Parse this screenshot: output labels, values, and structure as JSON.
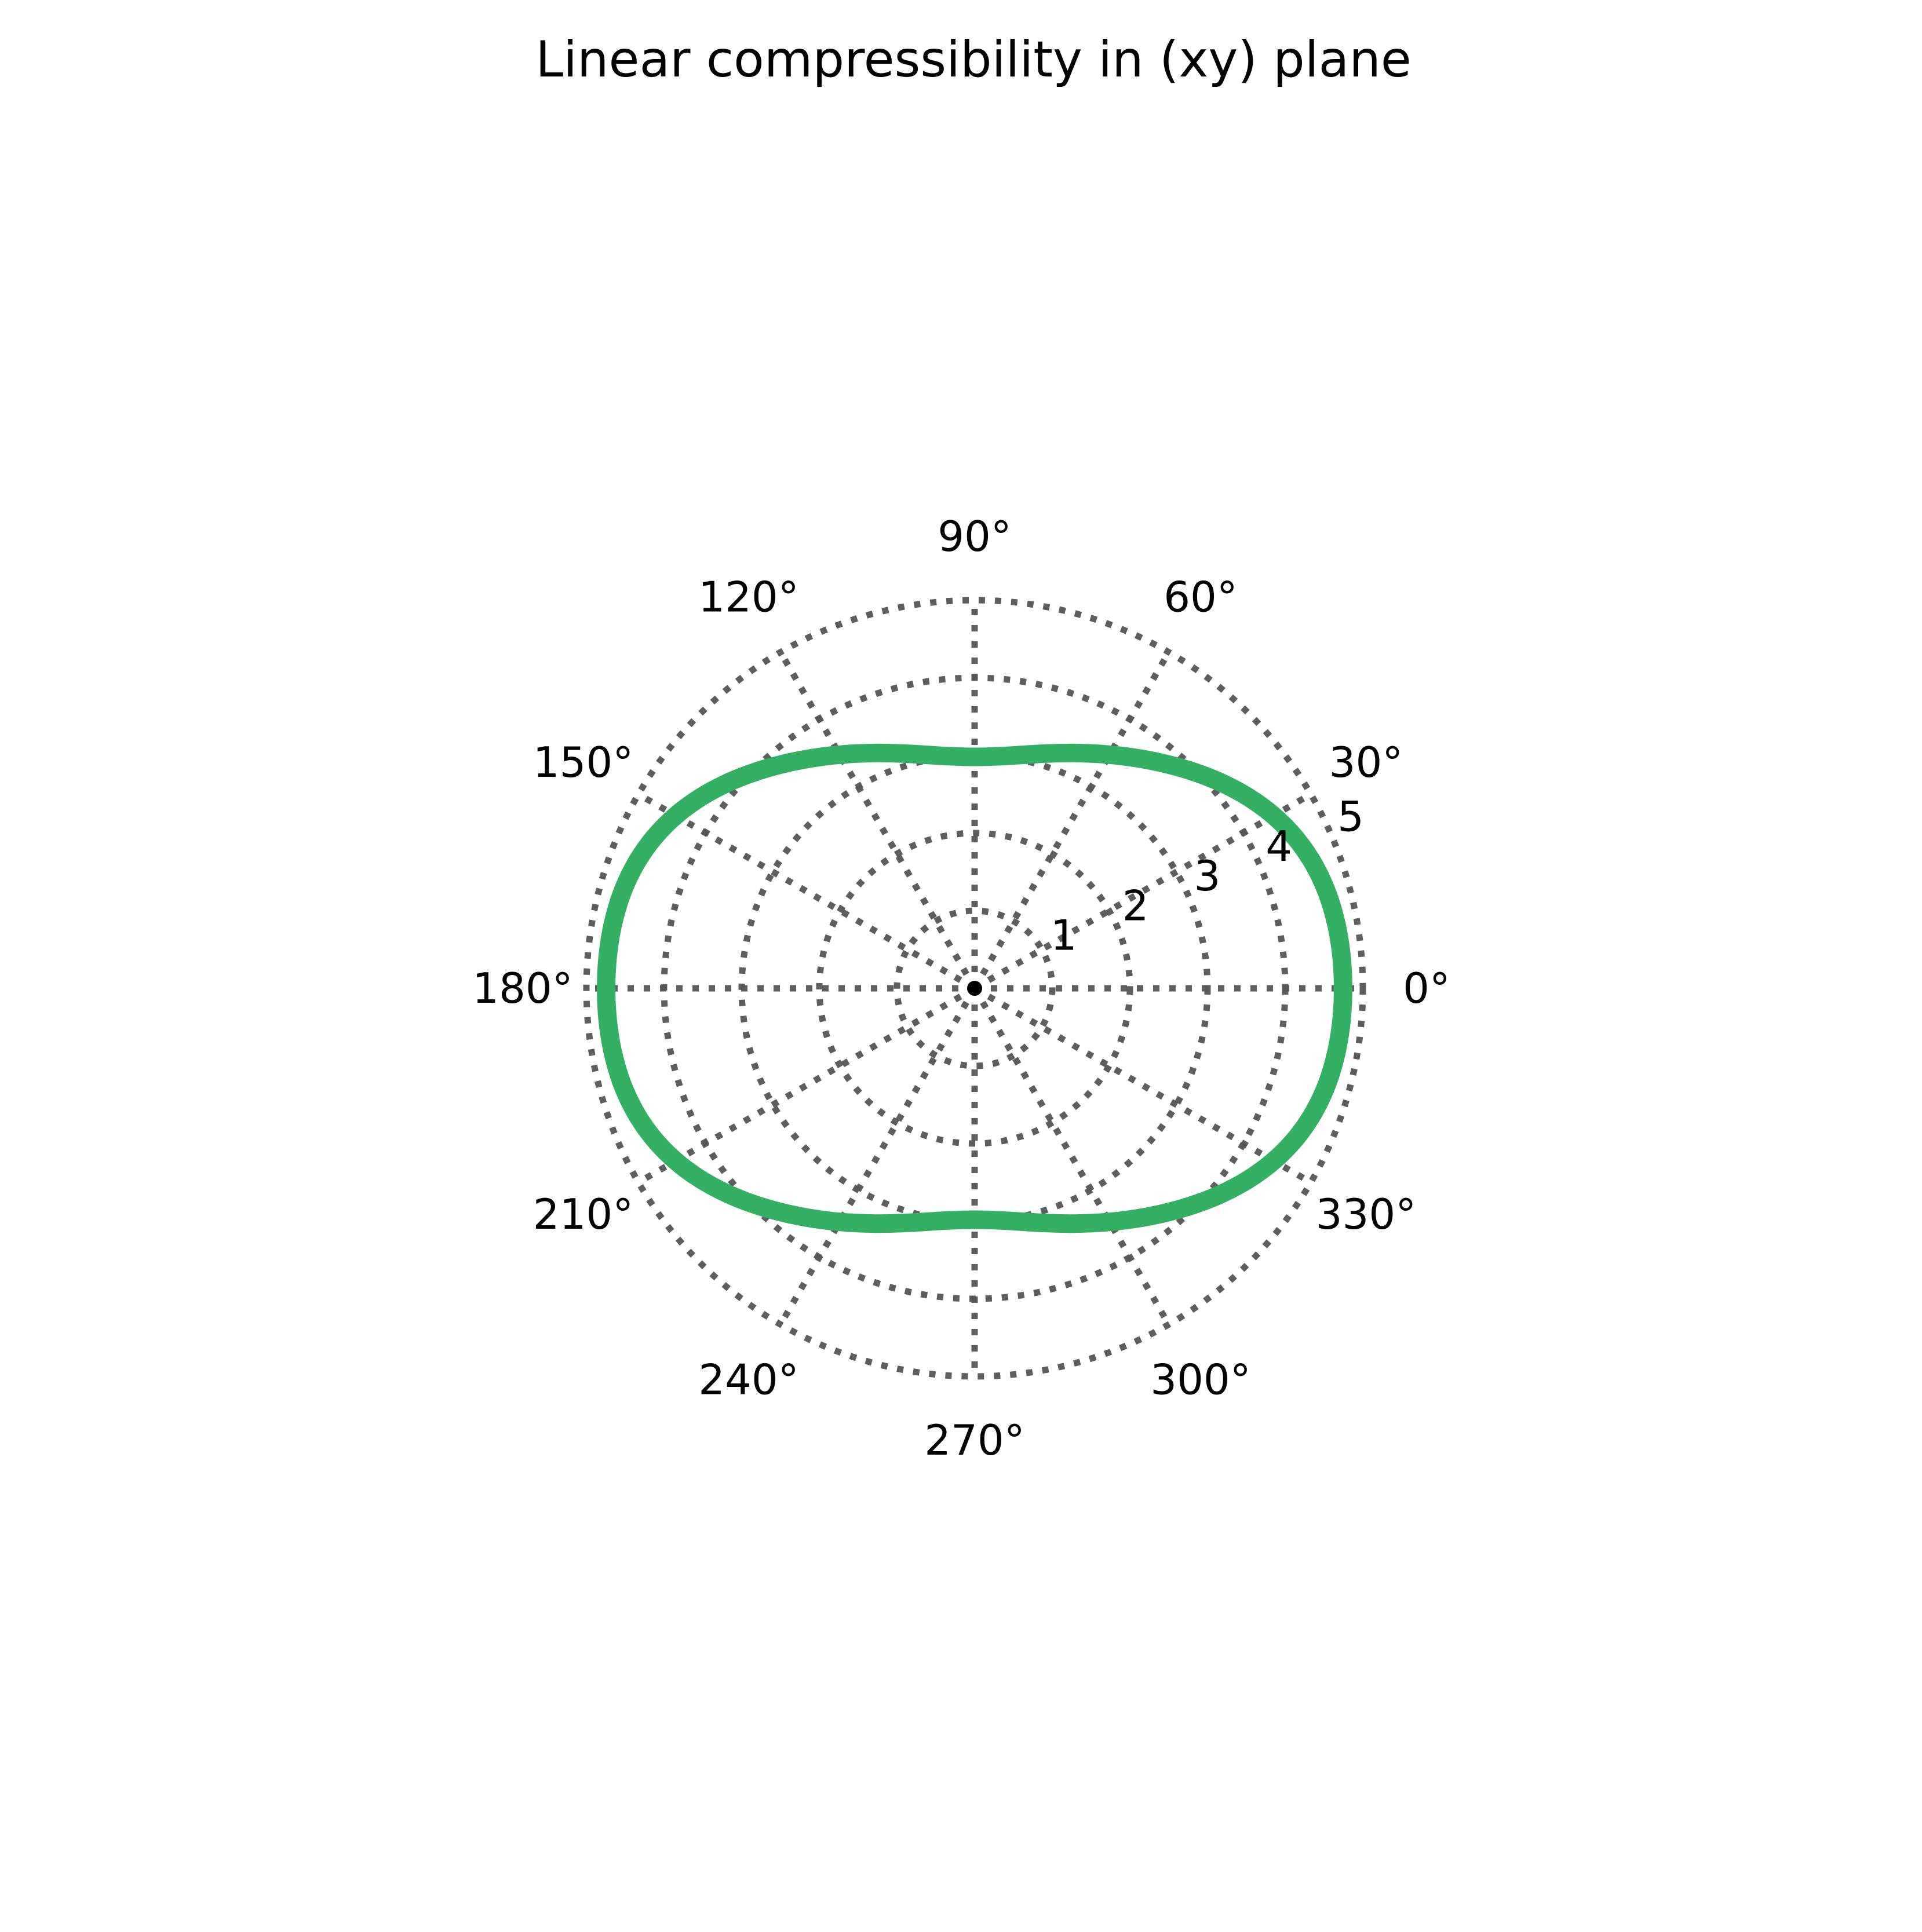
{
  "chart_data": {
    "type": "polar-line",
    "title": "Linear compressibility in (xy) plane",
    "theta_unit": "degrees",
    "theta_ticks": [
      "0°",
      "30°",
      "60°",
      "90°",
      "120°",
      "150°",
      "180°",
      "210°",
      "240°",
      "270°",
      "300°",
      "330°"
    ],
    "theta_tick_values": [
      0,
      30,
      60,
      90,
      120,
      150,
      180,
      210,
      240,
      270,
      300,
      330
    ],
    "r_ticks": [
      "1",
      "2",
      "3",
      "4",
      "5"
    ],
    "r_tick_values": [
      1,
      2,
      3,
      4,
      5
    ],
    "rlim": [
      0,
      5
    ],
    "grid": true,
    "grid_style": "dotted",
    "colors": {
      "series": "#34b064",
      "grid": "#555555",
      "text": "#000000",
      "center_marker": "#000000"
    },
    "series": [
      {
        "theta": [
          0,
          10,
          20,
          30,
          40,
          50,
          60,
          70,
          80,
          90,
          100,
          110,
          120,
          130,
          140,
          150,
          160,
          170,
          180,
          190,
          200,
          210,
          220,
          230,
          240,
          250,
          260,
          270,
          280,
          290,
          300,
          310,
          320,
          330,
          340,
          350
        ],
        "r": [
          4.75,
          4.73,
          4.65,
          4.45,
          4.13,
          3.78,
          3.48,
          3.22,
          3.05,
          2.98,
          3.05,
          3.22,
          3.48,
          3.78,
          4.13,
          4.45,
          4.65,
          4.73,
          4.75,
          4.73,
          4.65,
          4.45,
          4.13,
          3.78,
          3.48,
          3.22,
          3.05,
          2.98,
          3.05,
          3.22,
          3.48,
          3.78,
          4.13,
          4.45,
          4.65,
          4.73
        ]
      }
    ]
  }
}
